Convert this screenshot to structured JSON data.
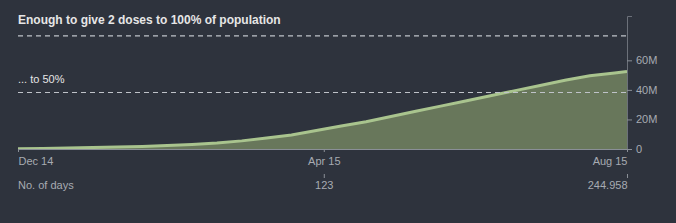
{
  "chart_data": {
    "type": "area",
    "color": "#a9c48e",
    "x": [
      0,
      10,
      20,
      30,
      40,
      50,
      60,
      70,
      80,
      90,
      100,
      110,
      120,
      130,
      140,
      150,
      160,
      170,
      180,
      190,
      200,
      210,
      220,
      230,
      240,
      244.958
    ],
    "values": [
      0.2,
      0.4,
      0.7,
      1.0,
      1.3,
      1.7,
      2.3,
      3.0,
      4.0,
      5.5,
      7.5,
      9.5,
      12.5,
      15.5,
      18.5,
      22,
      25.5,
      29,
      32.5,
      36,
      39.5,
      43,
      46.5,
      49.5,
      51.5,
      52.5
    ],
    "xlim": [
      0,
      244.958
    ],
    "xticks": [
      {
        "value": 0,
        "label": "Dec 14"
      },
      {
        "value": 123,
        "label": "Apr 15"
      },
      {
        "value": 244.958,
        "label": "Aug 15"
      }
    ],
    "x_label": "No. of days",
    "x_day_ticks": [
      123,
      244.958
    ],
    "ylim": [
      0,
      90
    ],
    "yticks": [
      0,
      {
        "value": 20,
        "label": "20M"
      },
      {
        "value": 40,
        "label": "40M"
      },
      {
        "value": 60,
        "label": "60M"
      }
    ],
    "annotations": [
      {
        "value": 76.5,
        "label": "Enough to give 2 doses to 100% of population"
      },
      {
        "value": 38.25,
        "label": "... to 50%"
      }
    ]
  }
}
